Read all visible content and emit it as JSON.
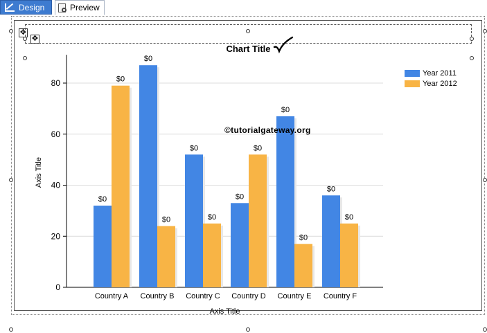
{
  "tabs": {
    "design_label": "Design",
    "preview_label": "Preview"
  },
  "watermark": "©tutorialgateway.org",
  "chart_data": {
    "type": "bar",
    "title": "Chart Title",
    "xlabel": "Axis Title",
    "ylabel": "Axis Title",
    "categories": [
      "Country A",
      "Country B",
      "Country C",
      "Country D",
      "Country E",
      "Country F"
    ],
    "series": [
      {
        "name": "Year 2011",
        "color": "#4286e4",
        "values": [
          32,
          87,
          52,
          33,
          67,
          36
        ]
      },
      {
        "name": "Year 2012",
        "color": "#f8b445",
        "values": [
          79,
          24,
          25,
          52,
          17,
          25
        ]
      }
    ],
    "data_label": "$0",
    "ylim": [
      0,
      90
    ],
    "yticks": [
      0,
      20,
      40,
      60,
      80
    ],
    "grid": true,
    "legend_position": "top-right"
  }
}
